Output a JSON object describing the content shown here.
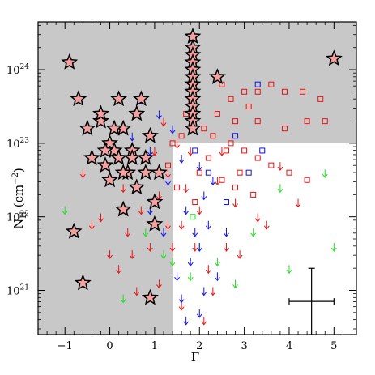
{
  "chart_data": {
    "type": "scatter",
    "xlabel": "Γ",
    "ylabel": "N",
    "ylabel_sub": "H",
    "ylabel_unit": " (cm",
    "ylabel_unit_sup": "−2",
    "ylabel_unit_close": ")",
    "xlim": [
      -1.6,
      5.5
    ],
    "ylim_log10": [
      20.4,
      24.65
    ],
    "y_scale": "log",
    "grid": false,
    "x_ticks": [
      "−1",
      "0",
      "1",
      "2",
      "3",
      "4",
      "5"
    ],
    "x_tick_values": [
      -1,
      0,
      1,
      2,
      3,
      4,
      5
    ],
    "y_ticks": [
      {
        "base": "10",
        "exp": "21",
        "log": 21
      },
      {
        "base": "10",
        "exp": "22",
        "log": 22
      },
      {
        "base": "10",
        "exp": "23",
        "log": 23
      },
      {
        "base": "10",
        "exp": "24",
        "log": 24
      }
    ],
    "colors": {
      "shaded_region": "#c8c8c8",
      "red": "#ee1111",
      "blue": "#1111ee",
      "green": "#22dd22",
      "star_outline": "#000000",
      "star_fill": "#f2a0a0"
    },
    "shaded_region_note_values": {
      "gamma_cut": 1.4,
      "logNH_cut": 23.0
    },
    "representative_error": {
      "x": 4.5,
      "logNH": 20.85,
      "x_err": 0.5,
      "logNH_err_low": 0.45,
      "logNH_err_high": 0.45
    },
    "series": [
      {
        "marker": "star",
        "points": [
          [
            -0.9,
            24.1
          ],
          [
            -0.7,
            23.6
          ],
          [
            -0.5,
            23.2
          ],
          [
            -0.2,
            23.3
          ],
          [
            0.0,
            23.0
          ],
          [
            0.1,
            22.9
          ],
          [
            -0.1,
            22.7
          ],
          [
            0.2,
            23.6
          ],
          [
            0.3,
            23.2
          ],
          [
            0.5,
            22.9
          ],
          [
            0.6,
            23.4
          ],
          [
            0.7,
            23.6
          ],
          [
            0.4,
            22.6
          ],
          [
            -0.4,
            22.8
          ],
          [
            0.0,
            22.5
          ],
          [
            0.3,
            22.6
          ],
          [
            0.6,
            22.4
          ],
          [
            0.8,
            22.6
          ],
          [
            1.0,
            22.2
          ],
          [
            -0.2,
            23.4
          ],
          [
            0.1,
            23.2
          ],
          [
            0.2,
            22.8
          ],
          [
            -0.1,
            22.9
          ],
          [
            0.5,
            22.8
          ],
          [
            0.8,
            22.8
          ],
          [
            1.1,
            22.6
          ],
          [
            0.9,
            23.1
          ],
          [
            0.3,
            22.1
          ],
          [
            1.0,
            21.9
          ],
          [
            -0.8,
            21.8
          ],
          [
            -0.6,
            21.1
          ],
          [
            0.9,
            20.9
          ],
          [
            1.85,
            24.3
          ],
          [
            1.85,
            24.2
          ],
          [
            1.85,
            24.1
          ],
          [
            1.85,
            24.0
          ],
          [
            1.85,
            23.9
          ],
          [
            1.85,
            23.8
          ],
          [
            1.85,
            23.7
          ],
          [
            1.85,
            23.6
          ],
          [
            1.85,
            23.5
          ],
          [
            1.85,
            23.4
          ],
          [
            1.85,
            23.3
          ],
          [
            1.85,
            23.2
          ],
          [
            1.85,
            24.45
          ],
          [
            2.4,
            23.9
          ],
          [
            5.0,
            24.15
          ]
        ]
      },
      {
        "marker": "square",
        "color": "red",
        "points": [
          [
            2.5,
            23.8
          ],
          [
            2.7,
            23.6
          ],
          [
            3.0,
            23.7
          ],
          [
            3.3,
            23.7
          ],
          [
            3.6,
            23.8
          ],
          [
            3.9,
            23.7
          ],
          [
            4.3,
            23.7
          ],
          [
            4.7,
            23.6
          ],
          [
            3.1,
            23.5
          ],
          [
            2.4,
            23.4
          ],
          [
            2.8,
            23.3
          ],
          [
            3.3,
            23.3
          ],
          [
            3.9,
            23.2
          ],
          [
            4.4,
            23.3
          ],
          [
            4.8,
            23.3
          ],
          [
            2.3,
            23.1
          ],
          [
            2.7,
            23.0
          ],
          [
            3.0,
            22.9
          ],
          [
            3.3,
            22.8
          ],
          [
            3.6,
            22.7
          ],
          [
            4.0,
            22.6
          ],
          [
            4.4,
            22.5
          ],
          [
            2.5,
            22.5
          ],
          [
            2.8,
            22.4
          ],
          [
            3.2,
            22.3
          ],
          [
            2.1,
            23.2
          ],
          [
            2.6,
            22.9
          ],
          [
            2.9,
            22.6
          ],
          [
            1.6,
            23.1
          ],
          [
            1.4,
            23.0
          ],
          [
            1.7,
            23.4
          ],
          [
            2.2,
            22.8
          ],
          [
            2.0,
            22.6
          ],
          [
            1.5,
            22.4
          ],
          [
            1.9,
            22.2
          ],
          [
            1.3,
            22.7
          ]
        ]
      },
      {
        "marker": "square",
        "color": "blue",
        "points": [
          [
            3.3,
            23.8
          ],
          [
            2.8,
            23.1
          ],
          [
            3.4,
            22.9
          ],
          [
            2.2,
            22.6
          ],
          [
            2.6,
            22.2
          ],
          [
            1.9,
            22.9
          ],
          [
            3.1,
            22.6
          ]
        ]
      },
      {
        "marker": "square",
        "color": "green",
        "points": [
          [
            1.85,
            22.0
          ]
        ]
      },
      {
        "marker": "upper_limit",
        "color": "green",
        "points": [
          [
            4.8,
            22.6
          ],
          [
            3.8,
            22.4
          ],
          [
            5.0,
            21.6
          ],
          [
            3.2,
            21.8
          ],
          [
            4.0,
            21.3
          ],
          [
            2.0,
            21.6
          ],
          [
            2.4,
            21.4
          ],
          [
            1.4,
            21.4
          ],
          [
            1.8,
            21.2
          ],
          [
            2.8,
            21.1
          ],
          [
            0.8,
            21.8
          ],
          [
            0.3,
            20.9
          ],
          [
            -1.0,
            22.1
          ],
          [
            1.2,
            21.5
          ]
        ]
      },
      {
        "marker": "upper_limit",
        "color": "blue",
        "points": [
          [
            0.7,
            23.6
          ],
          [
            1.1,
            23.4
          ],
          [
            1.4,
            23.2
          ],
          [
            0.5,
            23.1
          ],
          [
            0.9,
            22.9
          ],
          [
            1.6,
            22.8
          ],
          [
            2.0,
            22.7
          ],
          [
            2.3,
            22.5
          ],
          [
            1.3,
            22.5
          ],
          [
            2.1,
            22.3
          ],
          [
            1.7,
            22.1
          ],
          [
            2.2,
            21.9
          ],
          [
            2.0,
            21.6
          ],
          [
            1.8,
            21.4
          ],
          [
            2.4,
            21.2
          ],
          [
            2.1,
            21.0
          ],
          [
            1.6,
            20.9
          ],
          [
            2.0,
            20.7
          ],
          [
            1.7,
            20.6
          ],
          [
            0.9,
            22.1
          ],
          [
            1.2,
            21.8
          ],
          [
            2.6,
            21.8
          ],
          [
            1.5,
            21.2
          ],
          [
            1.9,
            21.8
          ]
        ]
      },
      {
        "marker": "upper_limit",
        "color": "red",
        "points": [
          [
            1.8,
            23.6
          ],
          [
            1.2,
            23.3
          ],
          [
            1.5,
            23.0
          ],
          [
            1.0,
            22.9
          ],
          [
            1.3,
            22.6
          ],
          [
            1.7,
            22.4
          ],
          [
            2.0,
            22.1
          ],
          [
            1.6,
            21.9
          ],
          [
            1.9,
            21.6
          ],
          [
            2.2,
            21.3
          ],
          [
            1.4,
            21.6
          ],
          [
            0.7,
            22.1
          ],
          [
            0.4,
            21.8
          ],
          [
            0.0,
            21.5
          ],
          [
            -0.2,
            22.0
          ],
          [
            0.2,
            21.3
          ],
          [
            0.6,
            21.0
          ],
          [
            1.1,
            21.1
          ],
          [
            0.9,
            21.6
          ],
          [
            -0.4,
            21.9
          ],
          [
            2.4,
            22.5
          ],
          [
            2.8,
            22.2
          ],
          [
            3.3,
            22.0
          ],
          [
            3.8,
            22.7
          ],
          [
            4.2,
            22.2
          ],
          [
            2.6,
            21.6
          ],
          [
            2.9,
            21.5
          ],
          [
            3.5,
            21.9
          ],
          [
            1.6,
            20.8
          ],
          [
            2.1,
            20.6
          ],
          [
            0.3,
            22.4
          ],
          [
            1.1,
            22.3
          ],
          [
            -0.6,
            22.6
          ],
          [
            2.3,
            21.0
          ],
          [
            1.3,
            21.9
          ],
          [
            1.8,
            22.9
          ],
          [
            2.5,
            22.9
          ],
          [
            0.5,
            21.5
          ]
        ]
      }
    ]
  }
}
